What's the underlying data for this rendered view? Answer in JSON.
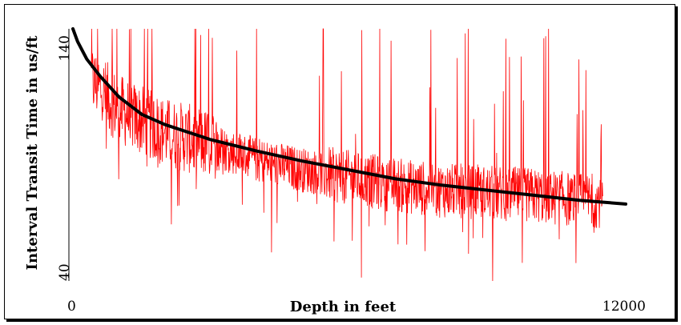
{
  "chart_data": {
    "type": "line",
    "xlabel": "Depth in feet",
    "ylabel": "Interval Transit Time in us/ft",
    "xlim": [
      0,
      12000
    ],
    "ylim": [
      40,
      140
    ],
    "x_ticks": [
      "0",
      "12000"
    ],
    "y_ticks": [
      "40",
      "140"
    ],
    "grid": false,
    "series": [
      {
        "style": "noisy measured log",
        "color": "#ff0000",
        "x_range": [
          400,
          11500
        ],
        "approx_points": [
          {
            "x": 400,
            "y": 120
          },
          {
            "x": 1000,
            "y": 108
          },
          {
            "x": 2000,
            "y": 99
          },
          {
            "x": 3000,
            "y": 94
          },
          {
            "x": 4000,
            "y": 88
          },
          {
            "x": 5000,
            "y": 84
          },
          {
            "x": 6000,
            "y": 81
          },
          {
            "x": 7000,
            "y": 78
          },
          {
            "x": 8000,
            "y": 76
          },
          {
            "x": 9000,
            "y": 75
          },
          {
            "x": 10000,
            "y": 74
          },
          {
            "x": 11000,
            "y": 72
          },
          {
            "x": 11500,
            "y": 72
          }
        ]
      },
      {
        "style": "smooth trend",
        "color": "#000000",
        "points": [
          {
            "x": 0,
            "y": 140
          },
          {
            "x": 100,
            "y": 135
          },
          {
            "x": 300,
            "y": 128
          },
          {
            "x": 600,
            "y": 121
          },
          {
            "x": 1000,
            "y": 113
          },
          {
            "x": 1500,
            "y": 106
          },
          {
            "x": 2000,
            "y": 102
          },
          {
            "x": 3000,
            "y": 96
          },
          {
            "x": 4000,
            "y": 91.5
          },
          {
            "x": 5000,
            "y": 87.5
          },
          {
            "x": 6000,
            "y": 84
          },
          {
            "x": 7000,
            "y": 80.5
          },
          {
            "x": 8000,
            "y": 78
          },
          {
            "x": 9000,
            "y": 76
          },
          {
            "x": 10000,
            "y": 74
          },
          {
            "x": 11000,
            "y": 72
          },
          {
            "x": 12000,
            "y": 70.5
          }
        ]
      }
    ]
  }
}
